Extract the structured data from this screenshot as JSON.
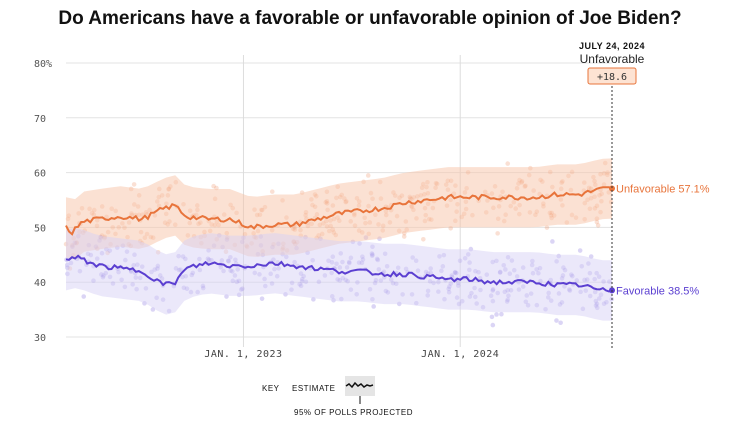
{
  "title": "Do Americans have a favorable or unfavorable opinion of Joe Biden?",
  "chart_data": {
    "type": "line",
    "title": "Do Americans have a favorable or unfavorable opinion of Joe Biden?",
    "x_range": [
      "2022-04",
      "2024-07-24"
    ],
    "ylim": [
      30,
      80
    ],
    "y_ticks": [
      30,
      40,
      50,
      60,
      70,
      80
    ],
    "y_tick_labels": [
      "30",
      "40",
      "50",
      "60",
      "70",
      "80%"
    ],
    "x_ticks": [
      "JAN. 1, 2023",
      "JAN. 1, 2024"
    ],
    "x_tick_positions": [
      0.325,
      0.722
    ],
    "grid": true,
    "series": [
      {
        "name": "Unfavorable",
        "label": "Unfavorable 57.1%",
        "color": "#e8743b",
        "band_color": "#f7c4a8",
        "x": [
          0.0,
          0.01,
          0.03,
          0.06,
          0.1,
          0.14,
          0.18,
          0.2,
          0.22,
          0.26,
          0.3,
          0.34,
          0.38,
          0.42,
          0.46,
          0.5,
          0.54,
          0.58,
          0.62,
          0.66,
          0.7,
          0.74,
          0.78,
          0.82,
          0.86,
          0.9,
          0.94,
          0.98,
          1.0
        ],
        "values": [
          50.0,
          49.0,
          51.0,
          51.5,
          52.0,
          51.5,
          53.5,
          54.0,
          52.0,
          51.5,
          51.5,
          50.0,
          50.5,
          50.5,
          51.5,
          52.5,
          53.0,
          53.5,
          54.5,
          55.0,
          55.5,
          55.5,
          55.5,
          55.5,
          55.5,
          56.0,
          56.0,
          57.0,
          57.1
        ]
      },
      {
        "name": "Favorable",
        "label": "Favorable 38.5%",
        "color": "#5b3fd1",
        "band_color": "#d7d2f6",
        "x": [
          0.0,
          0.02,
          0.06,
          0.1,
          0.14,
          0.18,
          0.2,
          0.22,
          0.26,
          0.3,
          0.34,
          0.38,
          0.42,
          0.46,
          0.5,
          0.54,
          0.58,
          0.62,
          0.66,
          0.7,
          0.74,
          0.78,
          0.82,
          0.86,
          0.9,
          0.94,
          0.98,
          1.0
        ],
        "values": [
          44.0,
          44.5,
          43.0,
          42.5,
          42.0,
          39.5,
          40.0,
          42.5,
          43.5,
          43.0,
          43.0,
          43.5,
          43.0,
          42.5,
          42.0,
          42.0,
          41.5,
          41.5,
          41.0,
          40.5,
          40.5,
          40.0,
          40.0,
          40.0,
          39.5,
          39.5,
          38.5,
          38.5
        ]
      }
    ],
    "annotation": {
      "date": "JULY 24, 2024",
      "leader": "Unfavorable",
      "margin": "+18.6"
    }
  },
  "key": {
    "label": "KEY",
    "estimate": "ESTIMATE",
    "band_note": "95% OF POLLS PROJECTED"
  }
}
